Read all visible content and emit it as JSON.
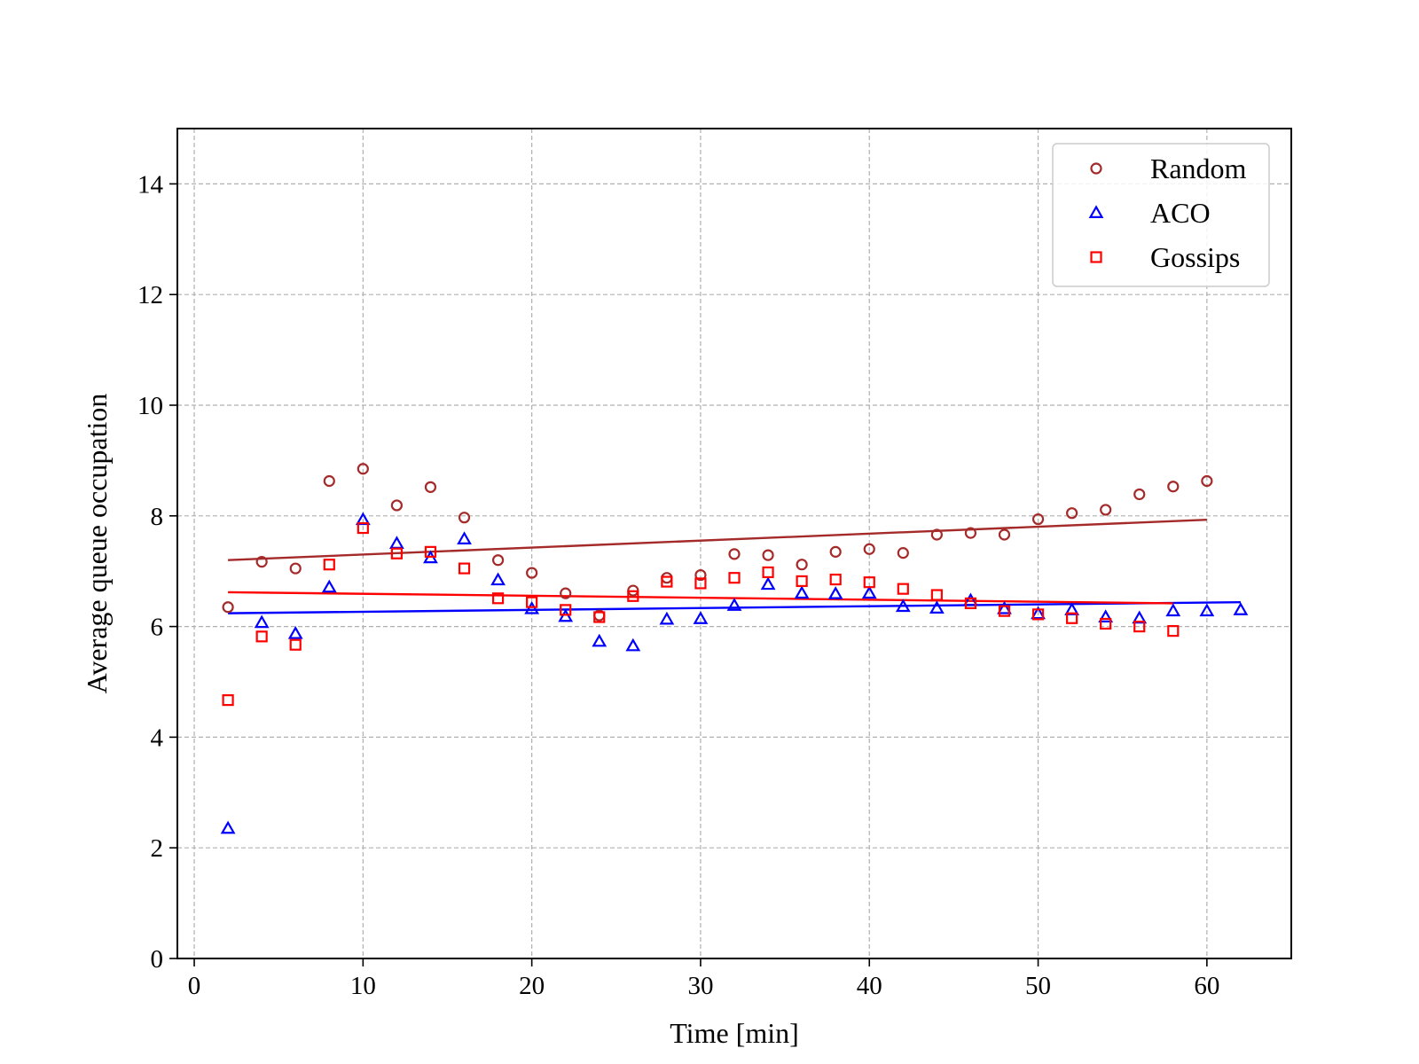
{
  "chart_data": {
    "type": "scatter",
    "title": "",
    "xlabel": "Time [min]",
    "ylabel": "Average queue occupation",
    "xlim": [
      -1,
      65
    ],
    "ylim": [
      0,
      15
    ],
    "xticks": [
      0,
      10,
      20,
      30,
      40,
      50,
      60
    ],
    "yticks": [
      0,
      2,
      4,
      6,
      8,
      10,
      12,
      14
    ],
    "grid": true,
    "legend_position": "top-right",
    "series": [
      {
        "name": "Random",
        "marker": "circle",
        "color": "#a52a2a",
        "x": [
          2,
          4,
          6,
          8,
          10,
          12,
          14,
          16,
          18,
          20,
          22,
          24,
          26,
          28,
          30,
          32,
          34,
          36,
          38,
          40,
          42,
          44,
          46,
          48,
          50,
          52,
          54,
          56,
          58,
          60
        ],
        "y": [
          6.35,
          7.17,
          7.05,
          8.63,
          8.85,
          8.19,
          8.52,
          7.97,
          7.2,
          6.97,
          6.6,
          6.2,
          6.65,
          6.88,
          6.93,
          7.31,
          7.29,
          7.12,
          7.35,
          7.4,
          7.33,
          7.66,
          7.69,
          7.66,
          7.94,
          8.05,
          8.11,
          8.39,
          8.53,
          8.63
        ],
        "trend": {
          "x": [
            2,
            60
          ],
          "y": [
            7.2,
            7.93
          ]
        }
      },
      {
        "name": "ACO",
        "marker": "triangle",
        "color": "#0000ff",
        "x": [
          2,
          4,
          6,
          8,
          10,
          12,
          14,
          16,
          18,
          20,
          22,
          24,
          26,
          28,
          30,
          32,
          34,
          36,
          38,
          40,
          42,
          44,
          46,
          48,
          50,
          52,
          54,
          56,
          58,
          60,
          62
        ],
        "y": [
          2.35,
          6.07,
          5.87,
          6.71,
          7.93,
          7.5,
          7.24,
          7.58,
          6.84,
          6.32,
          6.18,
          5.73,
          5.65,
          6.13,
          6.14,
          6.38,
          6.76,
          6.6,
          6.59,
          6.6,
          6.36,
          6.33,
          6.47,
          6.32,
          6.23,
          6.3,
          6.17,
          6.15,
          6.28,
          6.28,
          6.3
        ],
        "trend": {
          "x": [
            2,
            62
          ],
          "y": [
            6.24,
            6.44
          ]
        }
      },
      {
        "name": "Gossips",
        "marker": "square",
        "color": "#ff0000",
        "x": [
          2,
          4,
          6,
          8,
          10,
          12,
          14,
          16,
          18,
          20,
          22,
          24,
          26,
          28,
          30,
          32,
          34,
          36,
          38,
          40,
          42,
          44,
          46,
          48,
          50,
          52,
          54,
          56,
          58
        ],
        "y": [
          4.67,
          5.82,
          5.67,
          7.12,
          7.78,
          7.32,
          7.35,
          7.05,
          6.51,
          6.44,
          6.3,
          6.17,
          6.55,
          6.81,
          6.78,
          6.88,
          6.98,
          6.82,
          6.85,
          6.8,
          6.68,
          6.57,
          6.42,
          6.28,
          6.22,
          6.15,
          6.05,
          6.0,
          5.92
        ],
        "trend": {
          "x": [
            2,
            58
          ],
          "y": [
            6.62,
            6.42
          ]
        }
      }
    ]
  }
}
